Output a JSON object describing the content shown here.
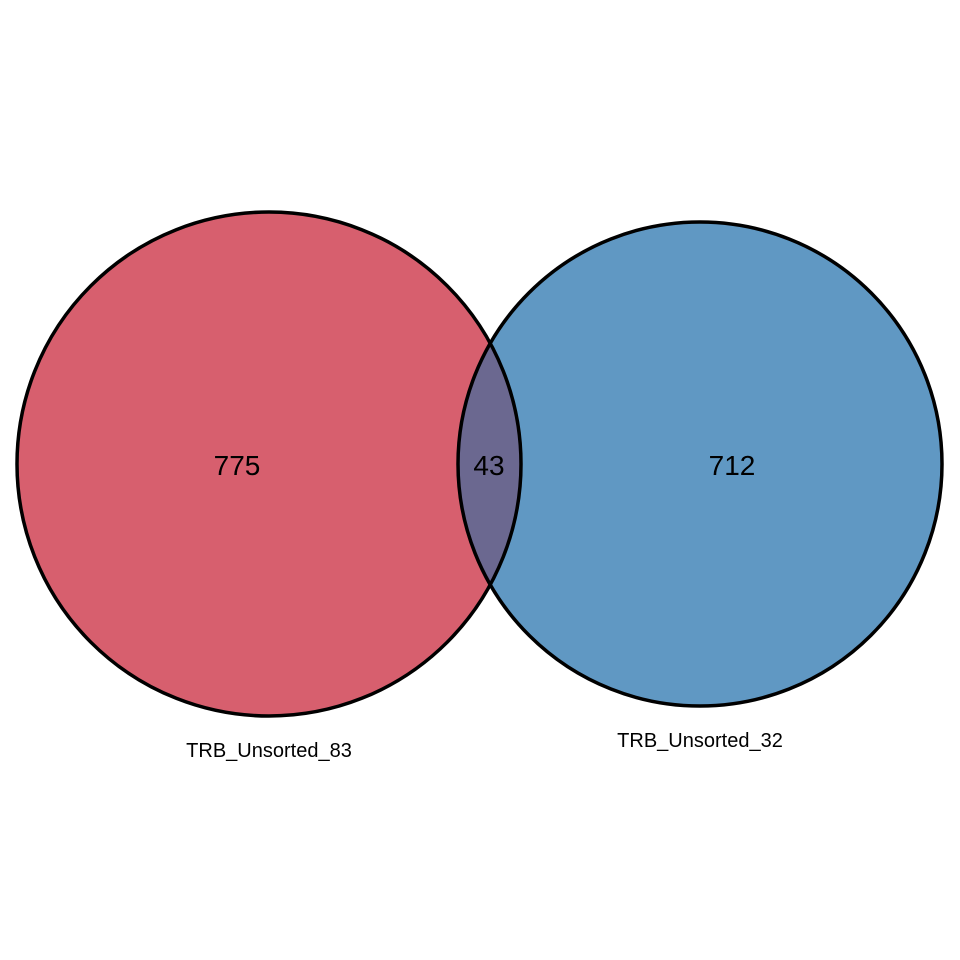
{
  "chart_data": {
    "type": "venn",
    "sets": [
      {
        "name": "TRB_Unsorted_83",
        "only_count": "775",
        "color": "#d75f6e"
      },
      {
        "name": "TRB_Unsorted_32",
        "only_count": "712",
        "color": "#6098c3"
      }
    ],
    "intersection": {
      "count": "43",
      "color": "#6b6890"
    },
    "outline_color": "#000000"
  }
}
